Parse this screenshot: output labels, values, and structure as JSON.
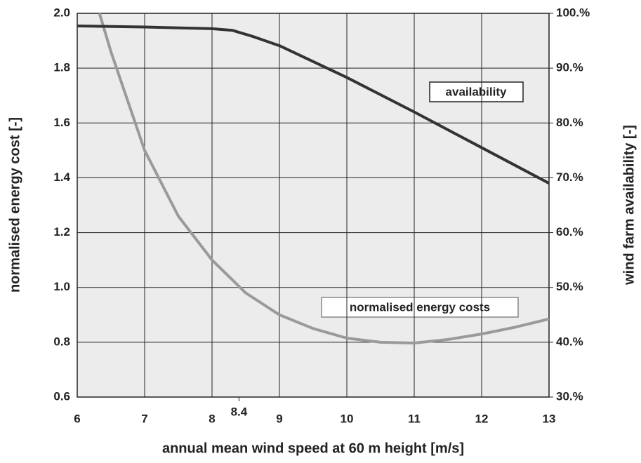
{
  "chart_data": {
    "type": "line",
    "xlabel": "annual mean wind speed at 60 m height  [m/s]",
    "ylabel": "normalised energy cost [-]",
    "y2label": "wind farm availability [-]",
    "annotations": [
      "availability",
      "normalised energy costs"
    ],
    "xlim": [
      6,
      13
    ],
    "xticks": [
      6,
      7,
      8,
      8.4,
      9,
      10,
      11,
      12,
      13
    ],
    "ylim": [
      0.6,
      2.0
    ],
    "yticks": [
      0.6,
      0.8,
      {
        "value": 1.0,
        "label": "1.0"
      },
      1.2,
      1.4,
      1.6,
      1.8,
      {
        "value": 2.0,
        "label": "2.0"
      }
    ],
    "y2lim": [
      30,
      100
    ],
    "y2ticks": [
      {
        "value": 30,
        "label": "30.%"
      },
      {
        "value": 40,
        "label": "40.%"
      },
      {
        "value": 50,
        "label": "50.%"
      },
      {
        "value": 60,
        "label": "60.%"
      },
      {
        "value": 70,
        "label": "70.%"
      },
      {
        "value": 80,
        "label": "80.%"
      },
      {
        "value": 90,
        "label": "90.%"
      },
      {
        "value": 100,
        "label": "100.%"
      }
    ],
    "grid": true,
    "series": [
      {
        "name": "normalised energy costs",
        "color": "#9a9a9a",
        "axis": "y",
        "x": [
          6.33,
          6.5,
          7,
          7.5,
          8,
          8.5,
          9,
          9.5,
          10,
          10.5,
          11,
          11.5,
          12,
          12.5,
          13
        ],
        "values": [
          2.0,
          1.86,
          1.5,
          1.26,
          1.1,
          0.98,
          0.9,
          0.85,
          0.815,
          0.8,
          0.797,
          0.81,
          0.83,
          0.855,
          0.885
        ]
      },
      {
        "name": "availability",
        "color": "#333333",
        "axis": "y2",
        "x": [
          6,
          7,
          8,
          8.3,
          8.6,
          9,
          10,
          11,
          12,
          13
        ],
        "values": [
          97.7,
          97.5,
          97.2,
          96.9,
          95.8,
          94.1,
          88.3,
          82,
          75.5,
          69
        ]
      }
    ]
  }
}
